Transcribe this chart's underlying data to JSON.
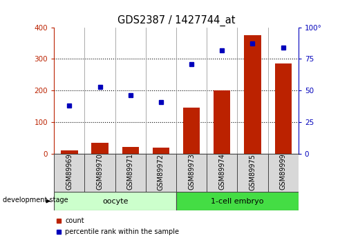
{
  "title": "GDS2387 / 1427744_at",
  "samples": [
    "GSM89969",
    "GSM89970",
    "GSM89971",
    "GSM89972",
    "GSM89973",
    "GSM89974",
    "GSM89975",
    "GSM89999"
  ],
  "counts": [
    10,
    35,
    20,
    18,
    145,
    200,
    375,
    285
  ],
  "percentiles": [
    38,
    53,
    46,
    41,
    71,
    82,
    87,
    84
  ],
  "bar_color": "#bb2200",
  "dot_color": "#0000bb",
  "left_ylim": [
    0,
    400
  ],
  "right_ylim": [
    0,
    100
  ],
  "left_yticks": [
    0,
    100,
    200,
    300,
    400
  ],
  "right_yticks": [
    0,
    25,
    50,
    75,
    100
  ],
  "right_yticklabels": [
    "0",
    "25",
    "50",
    "75",
    "100°"
  ],
  "groups": [
    {
      "label": "oocyte",
      "start": 0,
      "end": 3,
      "color": "#ccffcc"
    },
    {
      "label": "1-cell embryo",
      "start": 4,
      "end": 7,
      "color": "#44dd44"
    }
  ],
  "group_label": "development stage",
  "legend_items": [
    {
      "label": "count",
      "color": "#bb2200"
    },
    {
      "label": "percentile rank within the sample",
      "color": "#0000bb"
    }
  ],
  "background_color": "#ffffff",
  "bar_width": 0.55,
  "title_fontsize": 10.5,
  "tick_fontsize": 7.5,
  "label_fontsize": 7,
  "group_fontsize": 8
}
